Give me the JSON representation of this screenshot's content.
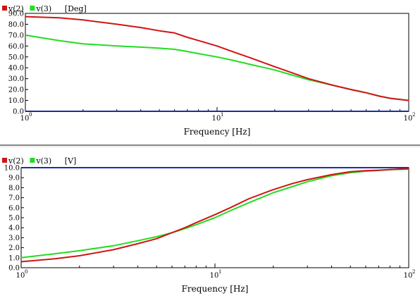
{
  "colors": {
    "v2": "#d01414",
    "v3": "#22dd22",
    "zero_line": "#1b2ea6",
    "grid": "#000000",
    "separator": "#8a8a8a"
  },
  "chart_data": [
    {
      "type": "line",
      "title": "",
      "legend": [
        {
          "name": "v(2)",
          "color": "#d01414"
        },
        {
          "name": "v(3)",
          "color": "#22dd22"
        }
      ],
      "unit": "[Deg]",
      "legend_position": "top-left",
      "xlabel": "Frequency [Hz]",
      "ylabel": "",
      "x_scale": "log",
      "xlim": [
        1,
        100
      ],
      "x_ticks": [
        {
          "base": "10",
          "exp": "0"
        },
        {
          "base": "10",
          "exp": "1"
        },
        {
          "base": "10",
          "exp": "2"
        }
      ],
      "ylim": [
        0,
        90
      ],
      "y_ticks": [
        "0.0",
        "10.0",
        "20.0",
        "30.0",
        "40.0",
        "50.0",
        "60.0",
        "70.0",
        "80.0",
        "90.0"
      ],
      "grid": false,
      "series": [
        {
          "name": "v(2)",
          "color": "#d01414",
          "x": [
            1,
            1.5,
            2,
            3,
            4,
            5,
            6,
            7,
            8,
            10,
            12,
            15,
            20,
            25,
            30,
            40,
            50,
            60,
            70,
            80,
            100
          ],
          "y": [
            87,
            86,
            84,
            80,
            77,
            74,
            72,
            68,
            65,
            60,
            55,
            49,
            41,
            35,
            30,
            24,
            20,
            17,
            14,
            12,
            10
          ]
        },
        {
          "name": "v(3)",
          "color": "#22dd22",
          "x": [
            1,
            1.5,
            2,
            3,
            4,
            5,
            6,
            7,
            8,
            10,
            12,
            15,
            20,
            25,
            30,
            40,
            50,
            60,
            70,
            80,
            100
          ],
          "y": [
            70,
            65,
            62,
            60,
            59,
            58,
            57,
            55,
            53,
            50,
            47,
            43,
            38,
            33,
            29,
            24,
            20,
            17,
            14,
            12,
            10
          ]
        },
        {
          "name": "",
          "color": "#1b2ea6",
          "x": [
            1,
            100
          ],
          "y": [
            0,
            0
          ]
        }
      ]
    },
    {
      "type": "line",
      "title": "",
      "legend": [
        {
          "name": "v(2)",
          "color": "#d01414"
        },
        {
          "name": "v(3)",
          "color": "#22dd22"
        }
      ],
      "unit": "[V]",
      "legend_position": "top-left",
      "xlabel": "Frequency [Hz]",
      "ylabel": "",
      "x_scale": "log",
      "xlim": [
        1,
        100
      ],
      "x_ticks": [
        {
          "base": "10",
          "exp": "0"
        },
        {
          "base": "10",
          "exp": "1"
        },
        {
          "base": "10",
          "exp": "2"
        }
      ],
      "ylim": [
        0,
        10
      ],
      "y_ticks": [
        "0.0",
        "1.0",
        "2.0",
        "3.0",
        "4.0",
        "5.0",
        "6.0",
        "7.0",
        "8.0",
        "9.0",
        "10.0"
      ],
      "grid": false,
      "series": [
        {
          "name": "v(2)",
          "color": "#d01414",
          "x": [
            1,
            1.5,
            2,
            3,
            4,
            5,
            6,
            7,
            8,
            10,
            12,
            15,
            20,
            25,
            30,
            40,
            50,
            60,
            70,
            80,
            100
          ],
          "y": [
            0.6,
            0.9,
            1.2,
            1.8,
            2.4,
            2.9,
            3.5,
            4.0,
            4.5,
            5.3,
            6.0,
            6.9,
            7.8,
            8.4,
            8.8,
            9.3,
            9.6,
            9.7,
            9.75,
            9.8,
            9.9
          ]
        },
        {
          "name": "v(3)",
          "color": "#22dd22",
          "x": [
            1,
            1.5,
            2,
            3,
            4,
            5,
            6,
            7,
            8,
            10,
            12,
            15,
            20,
            25,
            30,
            40,
            50,
            60,
            70,
            80,
            100
          ],
          "y": [
            1.0,
            1.4,
            1.7,
            2.2,
            2.7,
            3.1,
            3.5,
            3.9,
            4.3,
            5.0,
            5.7,
            6.5,
            7.5,
            8.1,
            8.6,
            9.2,
            9.5,
            9.65,
            9.72,
            9.8,
            9.85
          ]
        },
        {
          "name": "",
          "color": "#1b2ea6",
          "x": [
            1,
            100
          ],
          "y": [
            10,
            10
          ]
        }
      ]
    }
  ]
}
